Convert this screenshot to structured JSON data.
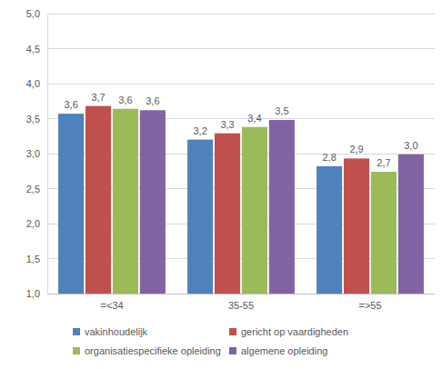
{
  "chart_data": {
    "type": "bar",
    "categories": [
      "=<34",
      "35-55",
      "=>55"
    ],
    "series": [
      {
        "name": "vakinhoudelijk",
        "color": "#4f81bd",
        "values": [
          3.57,
          3.2,
          2.82
        ],
        "value_labels": [
          "3,6",
          "3,2",
          "2,8"
        ]
      },
      {
        "name": "gericht op vaardigheden",
        "color": "#c0504d",
        "values": [
          3.68,
          3.29,
          2.93
        ],
        "value_labels": [
          "3,7",
          "3,3",
          "2,9"
        ]
      },
      {
        "name": "organisatiespecifieke opleiding",
        "color": "#9bbb59",
        "values": [
          3.64,
          3.38,
          2.74
        ],
        "value_labels": [
          "3,6",
          "3,4",
          "2,7"
        ]
      },
      {
        "name": "algemene opleiding",
        "color": "#8064a2",
        "values": [
          3.62,
          3.48,
          2.99
        ],
        "value_labels": [
          "3,6",
          "3,5",
          "3,0"
        ]
      }
    ],
    "ylim": [
      1,
      5
    ],
    "yticks": [
      {
        "value": 1,
        "label": "1,0"
      },
      {
        "value": 1.5,
        "label": "1,5"
      },
      {
        "value": 2,
        "label": "2,0"
      },
      {
        "value": 2.5,
        "label": "2,5"
      },
      {
        "value": 3,
        "label": "3,0"
      },
      {
        "value": 3.5,
        "label": "3,5"
      },
      {
        "value": 4,
        "label": "4,0"
      },
      {
        "value": 4.5,
        "label": "4,5"
      },
      {
        "value": 5,
        "label": "5,0"
      }
    ],
    "grid": true,
    "data_labels": true,
    "legend": "bottom"
  }
}
